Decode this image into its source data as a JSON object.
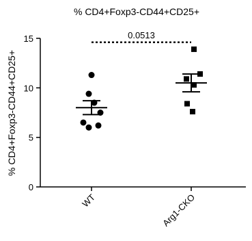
{
  "chart_data": {
    "type": "scatter",
    "title": "% CD4+Foxp3-CD44+CD25+",
    "xlabel": "",
    "ylabel": "% CD4+Foxp3-CD44+CD25+",
    "ylim": [
      0,
      15
    ],
    "yticks": [
      0,
      5,
      10,
      15
    ],
    "categories": [
      "WT",
      "Arg1-CKO"
    ],
    "grid": false,
    "series": [
      {
        "category": "WT",
        "marker": "circle",
        "values": [
          11.3,
          9.4,
          8.5,
          7.5,
          6.5,
          6.0,
          6.2
        ],
        "mean": 8.0,
        "sem_upper": 8.7,
        "sem_lower": 7.3
      },
      {
        "category": "Arg1-CKO",
        "marker": "square",
        "values": [
          13.9,
          11.4,
          10.9,
          10.3,
          8.4,
          7.6
        ],
        "mean": 10.5,
        "sem_upper": 11.4,
        "sem_lower": 9.6
      }
    ],
    "annotation": {
      "text": "0.0513",
      "from": "WT",
      "to": "Arg1-CKO",
      "y": 14.6,
      "style": "dotted"
    }
  }
}
